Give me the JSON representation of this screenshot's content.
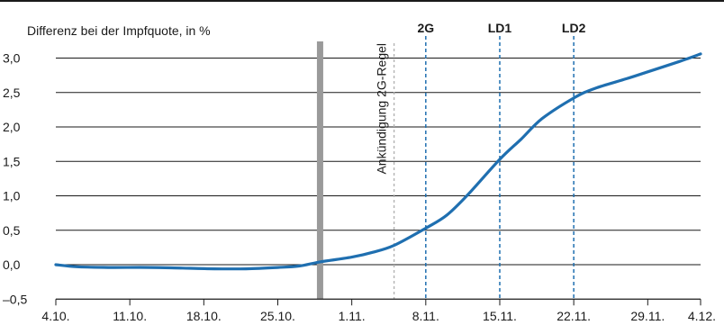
{
  "chart_data": {
    "type": "line",
    "title": "",
    "ylabel": "Differenz bei der Impfquote, in %",
    "xlabel": "",
    "ylim": [
      -0.5,
      3.1
    ],
    "grid": true,
    "y_ticks": [
      {
        "value": 3.0,
        "label": "3,0"
      },
      {
        "value": 2.5,
        "label": "2,5"
      },
      {
        "value": 2.0,
        "label": "2,0"
      },
      {
        "value": 1.5,
        "label": "1,5"
      },
      {
        "value": 1.0,
        "label": "1,0"
      },
      {
        "value": 0.5,
        "label": "0,5"
      },
      {
        "value": 0.0,
        "label": "0,0"
      },
      {
        "value": -0.5,
        "label": "–0,5"
      }
    ],
    "x_ticks": [
      {
        "date": "2021-10-04",
        "label": "4.10."
      },
      {
        "date": "2021-10-11",
        "label": "11.10."
      },
      {
        "date": "2021-10-18",
        "label": "18.10."
      },
      {
        "date": "2021-10-25",
        "label": "25.10."
      },
      {
        "date": "2021-11-01",
        "label": "1.11."
      },
      {
        "date": "2021-11-08",
        "label": "8.11."
      },
      {
        "date": "2021-11-15",
        "label": "15.11."
      },
      {
        "date": "2021-11-22",
        "label": "22.11."
      },
      {
        "date": "2021-11-29",
        "label": "29.11."
      },
      {
        "date": "2021-12-04",
        "label": "4.12."
      }
    ],
    "series": [
      {
        "color": "#1f6fb0",
        "points": [
          [
            "2021-10-04",
            0.0
          ],
          [
            "2021-10-06",
            -0.03
          ],
          [
            "2021-10-09",
            -0.04
          ],
          [
            "2021-10-13",
            -0.04
          ],
          [
            "2021-10-16",
            -0.05
          ],
          [
            "2021-10-19",
            -0.06
          ],
          [
            "2021-10-22",
            -0.06
          ],
          [
            "2021-10-25",
            -0.04
          ],
          [
            "2021-10-27",
            -0.02
          ],
          [
            "2021-10-29",
            0.04
          ],
          [
            "2021-11-01",
            0.11
          ],
          [
            "2021-11-03",
            0.18
          ],
          [
            "2021-11-05",
            0.28
          ],
          [
            "2021-11-08",
            0.53
          ],
          [
            "2021-11-10",
            0.72
          ],
          [
            "2021-11-12",
            1.02
          ],
          [
            "2021-11-15",
            1.53
          ],
          [
            "2021-11-17",
            1.82
          ],
          [
            "2021-11-19",
            2.12
          ],
          [
            "2021-11-22",
            2.42
          ],
          [
            "2021-11-24",
            2.56
          ],
          [
            "2021-11-27",
            2.7
          ],
          [
            "2021-11-29",
            2.8
          ],
          [
            "2021-12-02",
            2.95
          ],
          [
            "2021-12-04",
            3.06
          ]
        ]
      }
    ],
    "annotations": [
      {
        "date": "2021-10-29",
        "label": "",
        "style": "thick-gray",
        "color": "#9a9a9a"
      },
      {
        "date": "2021-11-05",
        "label": "Ankündigung 2G-Regel",
        "style": "dotted-gray",
        "color": "#b0b0b0"
      },
      {
        "date": "2021-11-08",
        "label": "2G",
        "style": "dashed-blue",
        "color": "#1f6fb0"
      },
      {
        "date": "2021-11-15",
        "label": "LD1",
        "style": "dashed-blue",
        "color": "#1f6fb0"
      },
      {
        "date": "2021-11-22",
        "label": "LD2",
        "style": "dashed-blue",
        "color": "#1f6fb0"
      }
    ],
    "colors": {
      "line": "#1f6fb0",
      "grid": "#1a1a1a",
      "text": "#1a1a1a"
    }
  }
}
